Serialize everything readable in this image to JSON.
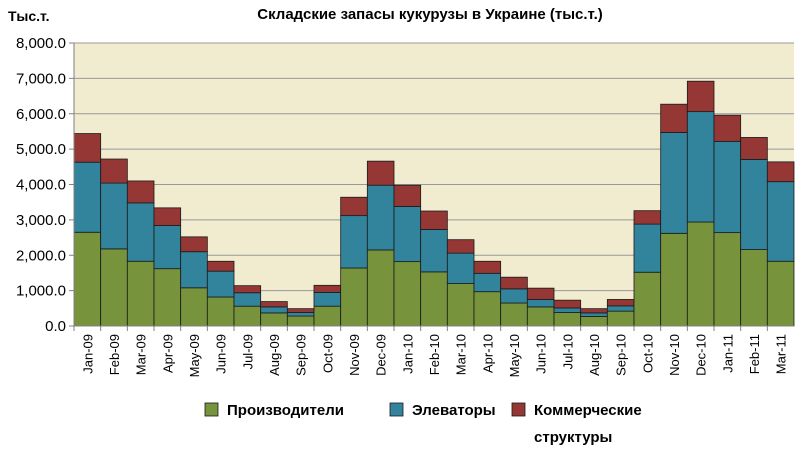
{
  "chart_data": {
    "type": "bar",
    "stacked": true,
    "title": "Складские запасы кукурузы в Украине (тыс.т.)",
    "ylabel": "Тыс.т.",
    "xlabel": "",
    "ylim": [
      0,
      8000
    ],
    "yticks": [
      0,
      1000,
      2000,
      3000,
      4000,
      5000,
      6000,
      7000,
      8000
    ],
    "ytick_labels": [
      "0.0",
      "1,000.0",
      "2,000.0",
      "3,000.0",
      "4,000.0",
      "5,000.0",
      "6,000.0",
      "7,000.0",
      "8,000.0"
    ],
    "grid": true,
    "legend_position": "bottom",
    "categories": [
      "Jan-09",
      "Feb-09",
      "Mar-09",
      "Apr-09",
      "May-09",
      "Jun-09",
      "Jul-09",
      "Aug-09",
      "Sep-09",
      "Oct-09",
      "Nov-09",
      "Dec-09",
      "Jan-10",
      "Feb-10",
      "Mar-10",
      "Apr-10",
      "May-10",
      "Jun-10",
      "Jul-10",
      "Aug-10",
      "Sep-10",
      "Oct-10",
      "Nov-10",
      "Dec-10",
      "Jan-11",
      "Feb-11",
      "Mar-11"
    ],
    "series": [
      {
        "name": "Производители",
        "color": "#77933c",
        "values": [
          2650,
          2180,
          1830,
          1620,
          1080,
          820,
          560,
          370,
          280,
          560,
          1640,
          2150,
          1820,
          1530,
          1200,
          970,
          650,
          540,
          380,
          270,
          420,
          1520,
          2620,
          2940,
          2640,
          2160,
          1830
        ]
      },
      {
        "name": "Элеваторы",
        "color": "#31849b",
        "values": [
          1980,
          1860,
          1650,
          1220,
          1020,
          730,
          380,
          170,
          100,
          390,
          1480,
          1830,
          1560,
          1200,
          860,
          520,
          400,
          210,
          130,
          100,
          150,
          1360,
          2850,
          3120,
          2580,
          2550,
          2250
        ]
      },
      {
        "name": "Коммерческие структуры",
        "color": "#953735",
        "values": [
          810,
          680,
          620,
          500,
          420,
          280,
          200,
          150,
          110,
          200,
          520,
          680,
          600,
          520,
          380,
          340,
          330,
          320,
          220,
          120,
          180,
          380,
          800,
          860,
          740,
          620,
          560
        ]
      }
    ],
    "legend": [
      {
        "label_line1": "Производители",
        "label_line2": "",
        "color": "#77933c"
      },
      {
        "label_line1": "Элеваторы",
        "label_line2": "",
        "color": "#31849b"
      },
      {
        "label_line1": "Коммерческие",
        "label_line2": "структуры",
        "color": "#953735"
      }
    ],
    "colors": {
      "plot_background": "#f1ebd0",
      "axis": "#808080",
      "gridline": "#999999"
    }
  }
}
